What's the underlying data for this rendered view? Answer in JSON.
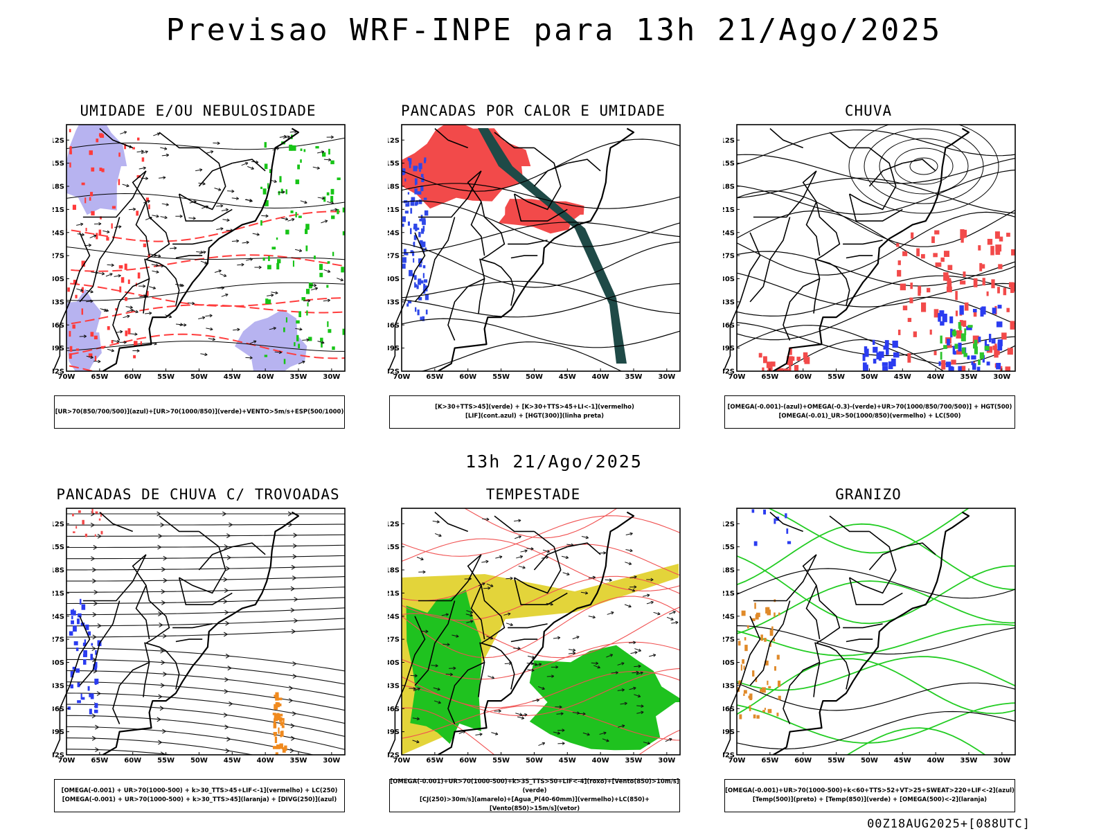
{
  "header": {
    "title": "Previsao WRF-INPE  para 13h 21/Ago/2025"
  },
  "mid_title": "13h 21/Ago/2025",
  "footer": "00Z18AUG2025+[088UTC]",
  "axes": {
    "lat_labels": [
      "12S",
      "15S",
      "18S",
      "21S",
      "24S",
      "27S",
      "30S",
      "33S",
      "36S",
      "39S",
      "42S"
    ],
    "lon_labels": [
      "70W",
      "65W",
      "60W",
      "55W",
      "50W",
      "45W",
      "40W",
      "35W",
      "30W"
    ]
  },
  "panels": [
    {
      "title": "UMIDADE E/OU NEBULOSIDADE",
      "legend": [
        "[UR>70(850/700/500)](azul)+[UR>70(1000/850)](verde)+VENTO>5m/s+ESP(500/1000)"
      ],
      "colors": {
        "blue": "#b7b3f0",
        "green": "#17c417",
        "red": "#ff3b3b"
      }
    },
    {
      "title": "PANCADAS POR CALOR E UMIDADE",
      "legend": [
        "[K>30+TTS>45](verde) + [K>30+TTS>45+LI<-1](vermelho)",
        "[LIF](cont.azul) + [HGT(300)](linha preta)"
      ],
      "colors": {
        "teal": "#1f4a47",
        "red": "#f24a4a",
        "blue": "#2f48e8"
      }
    },
    {
      "title": "CHUVA",
      "legend": [
        "[OMEGA(-0.001)-(azul)+OMEGA(-0.3)-(verde)+UR>70(1000/850/700/500)] + HGT(500)",
        "[OMEGA(-0.01)_UR>50(1000/850)(vermelho) + LC(500)"
      ],
      "colors": {
        "red": "#f24a4a",
        "blue": "#2b3cf0",
        "green": "#2ec42e"
      }
    },
    {
      "title": "PANCADAS DE CHUVA C/ TROVOADAS",
      "legend": [
        "[OMEGA(-0.001) + UR>70(1000-500) + k>30_TTS>45+LIF<-1](vermelho) + LC(250)",
        "[OMEGA(-0.001) + UR>70(1000-500) + k>30_TTS>45](laranja) + [DIVG(250)](azul)"
      ],
      "colors": {
        "blue": "#2b3cf0",
        "orange": "#f08a1e",
        "red": "#f24a4a"
      }
    },
    {
      "title": "TEMPESTADE",
      "legend": [
        "[OMEGA(-0.001)+UR>70(1000-500)+k>35_TTS>50+LIF<-4](roxo)+[Vento(850)>10m/s](verde)",
        "[CJ(250)>30m/s](amarelo)+[Agua_P(40-60mm)](vermelho)+LC(850)+[Vento(850)>15m/s](vetor)"
      ],
      "colors": {
        "yellow": "#e3d43a",
        "green": "#1fc21f",
        "red": "#f05050"
      }
    },
    {
      "title": "GRANIZO",
      "legend": [
        "[OMEGA(-0.001)+UR>70(1000-500)+k<60+TTS>52+VT>25+SWEAT>220+LIF<-2](azul)",
        "[Temp(500)](preto) + [Temp(850)](verde) + [OMEGA(500)<-2](laranja)"
      ],
      "colors": {
        "green": "#22cc22",
        "orange": "#e08a2a",
        "blue": "#2b3cf0"
      }
    }
  ]
}
